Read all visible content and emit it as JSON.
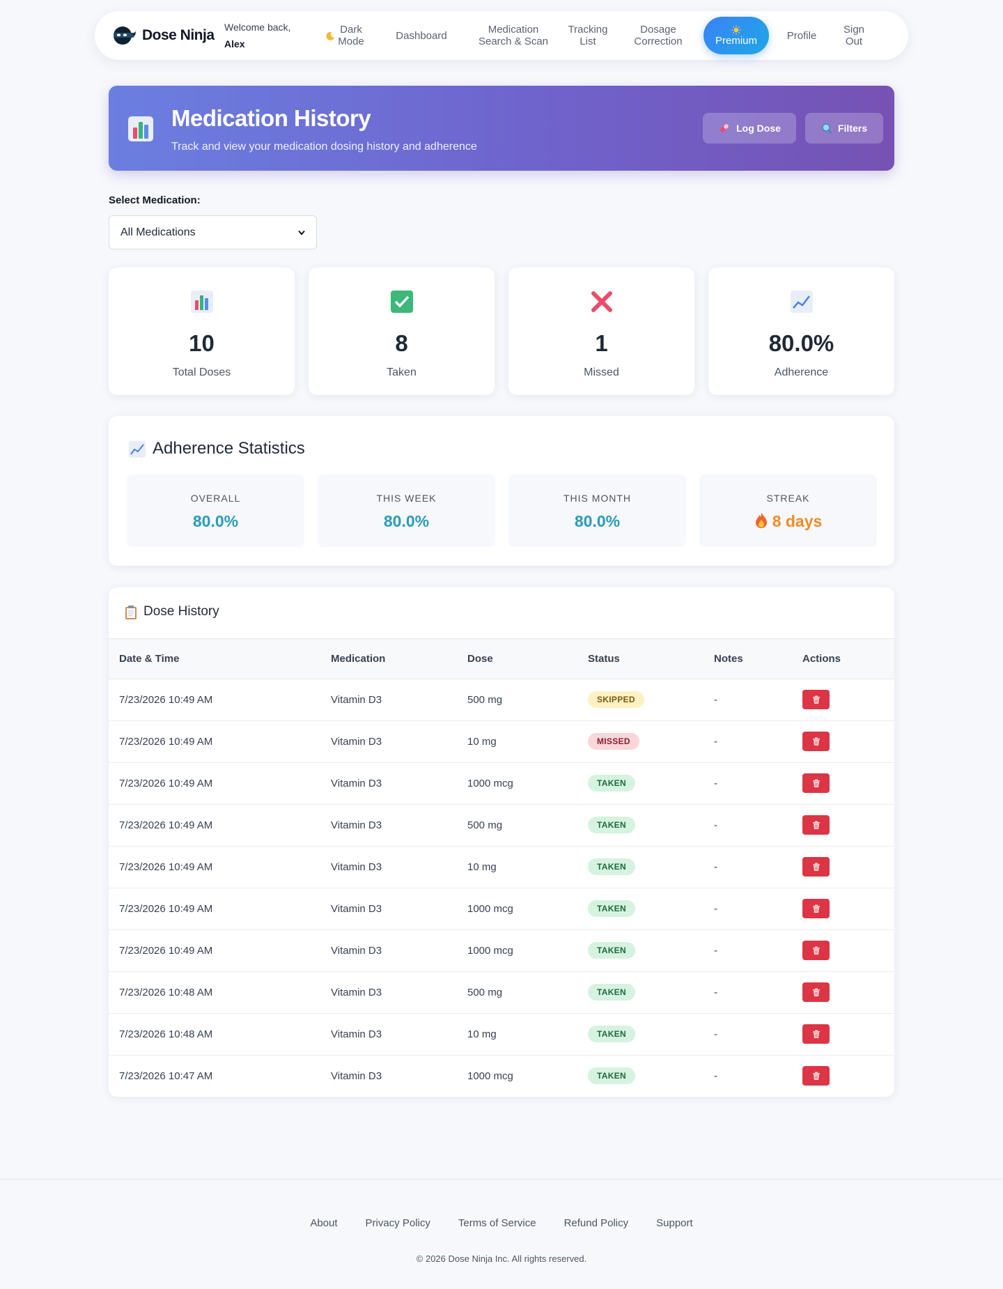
{
  "nav": {
    "brand": "Dose Ninja",
    "welcome_line": "Welcome back,",
    "user_name": "Alex",
    "dark_mode": "Dark Mode",
    "items": [
      "Dashboard",
      "Medication Search & Scan",
      "Tracking List",
      "Dosage Correction"
    ],
    "premium": "Premium",
    "profile": "Profile",
    "sign_out": "Sign Out"
  },
  "hero": {
    "title": "Medication History",
    "subtitle": "Track and view your medication dosing history and adherence",
    "log_dose": "Log Dose",
    "filters": "Filters"
  },
  "selector": {
    "label": "Select Medication:",
    "selected": "All Medications"
  },
  "stats": [
    {
      "value": "10",
      "label": "Total Doses",
      "icon": "bar-chart-icon"
    },
    {
      "value": "8",
      "label": "Taken",
      "icon": "check-icon"
    },
    {
      "value": "1",
      "label": "Missed",
      "icon": "cross-icon"
    },
    {
      "value": "80.0%",
      "label": "Adherence",
      "icon": "trend-icon"
    }
  ],
  "adherence": {
    "title": "Adherence Statistics",
    "boxes": [
      {
        "label": "OVERALL",
        "value": "80.0%"
      },
      {
        "label": "THIS WEEK",
        "value": "80.0%"
      },
      {
        "label": "THIS MONTH",
        "value": "80.0%"
      },
      {
        "label": "STREAK",
        "value": "8 days"
      }
    ]
  },
  "history": {
    "title": "Dose History",
    "columns": [
      "Date & Time",
      "Medication",
      "Dose",
      "Status",
      "Notes",
      "Actions"
    ],
    "rows": [
      {
        "date": "7/23/2026 10:49 AM",
        "med": "Vitamin D3",
        "dose": "500 mg",
        "status": "SKIPPED",
        "notes": "-"
      },
      {
        "date": "7/23/2026 10:49 AM",
        "med": "Vitamin D3",
        "dose": "10 mg",
        "status": "MISSED",
        "notes": "-"
      },
      {
        "date": "7/23/2026 10:49 AM",
        "med": "Vitamin D3",
        "dose": "1000 mcg",
        "status": "TAKEN",
        "notes": "-"
      },
      {
        "date": "7/23/2026 10:49 AM",
        "med": "Vitamin D3",
        "dose": "500 mg",
        "status": "TAKEN",
        "notes": "-"
      },
      {
        "date": "7/23/2026 10:49 AM",
        "med": "Vitamin D3",
        "dose": "10 mg",
        "status": "TAKEN",
        "notes": "-"
      },
      {
        "date": "7/23/2026 10:49 AM",
        "med": "Vitamin D3",
        "dose": "1000 mcg",
        "status": "TAKEN",
        "notes": "-"
      },
      {
        "date": "7/23/2026 10:49 AM",
        "med": "Vitamin D3",
        "dose": "1000 mcg",
        "status": "TAKEN",
        "notes": "-"
      },
      {
        "date": "7/23/2026 10:48 AM",
        "med": "Vitamin D3",
        "dose": "500 mg",
        "status": "TAKEN",
        "notes": "-"
      },
      {
        "date": "7/23/2026 10:48 AM",
        "med": "Vitamin D3",
        "dose": "10 mg",
        "status": "TAKEN",
        "notes": "-"
      },
      {
        "date": "7/23/2026 10:47 AM",
        "med": "Vitamin D3",
        "dose": "1000 mcg",
        "status": "TAKEN",
        "notes": "-"
      }
    ]
  },
  "footer": {
    "links": [
      "About",
      "Privacy Policy",
      "Terms of Service",
      "Refund Policy",
      "Support"
    ],
    "copyright": "© 2026 Dose Ninja Inc. All rights reserved."
  },
  "colors": {
    "accent": "#6f63cc",
    "stat_value": "#2b9bb8",
    "streak": "#f28a26",
    "delete": "#dc3545"
  }
}
